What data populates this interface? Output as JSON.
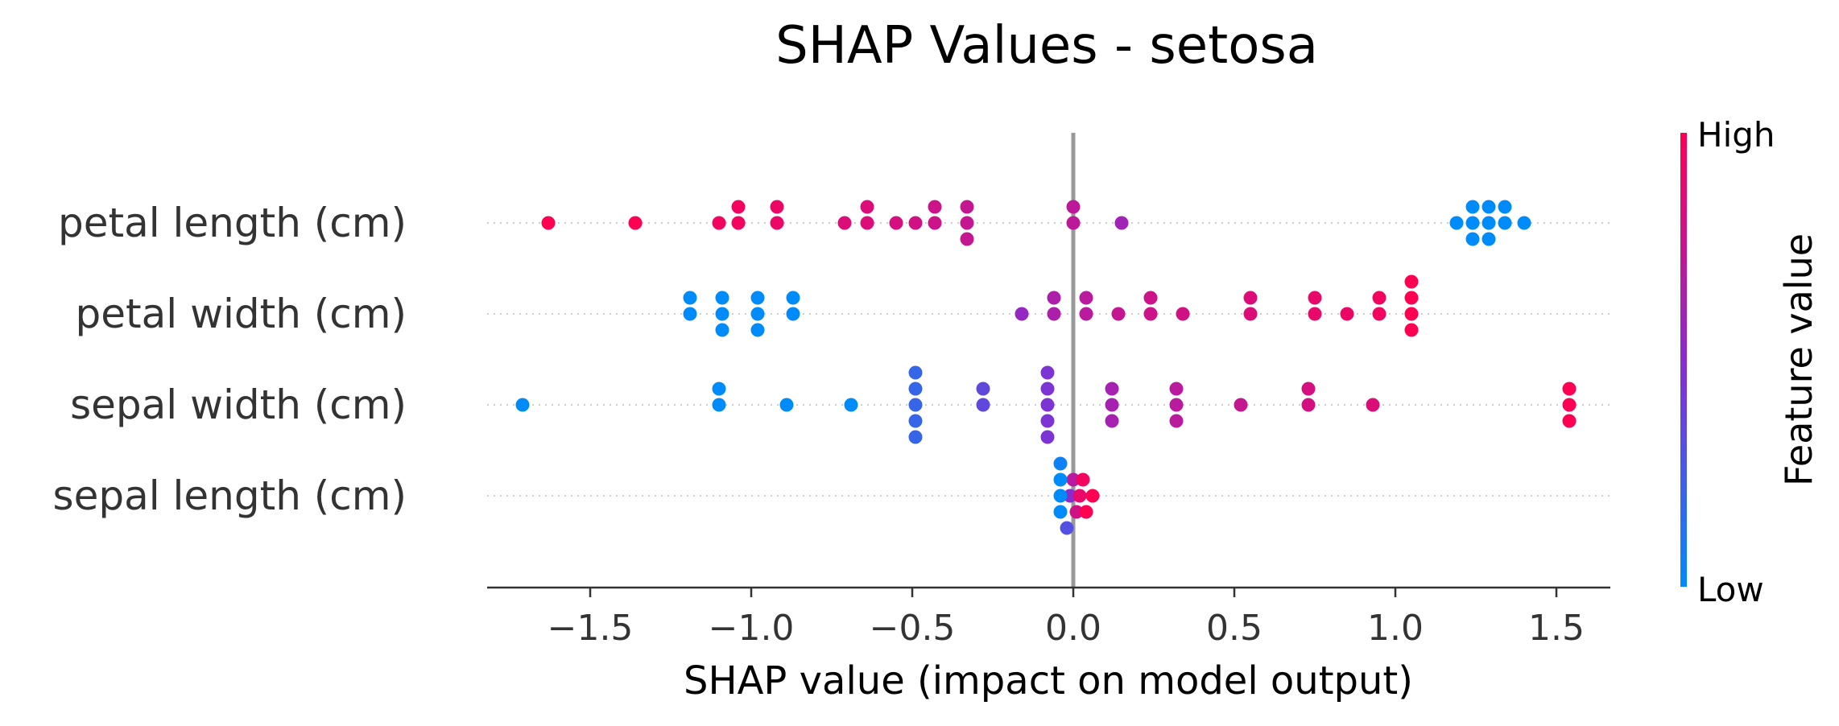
{
  "chart_data": {
    "type": "scatter",
    "subtype": "shap-beeswarm",
    "title": "SHAP Values - setosa",
    "xlabel": "SHAP value (impact on model output)",
    "xlim": [
      -1.9,
      1.7
    ],
    "xticks": [
      -1.5,
      -1.0,
      -0.5,
      0.0,
      0.5,
      1.0,
      1.5
    ],
    "xtick_labels": [
      "−1.5",
      "−1.0",
      "−0.5",
      "0.0",
      "0.5",
      "1.0",
      "1.5"
    ],
    "grid": "dotted row guides",
    "zero_line": true,
    "colorbar": {
      "label": "Feature value",
      "high_label": "High",
      "low_label": "Low",
      "low_color": "#008bfb",
      "high_color": "#ff0052"
    },
    "features": [
      {
        "name": "petal length (cm)",
        "points": [
          {
            "shap": -1.63,
            "fv": 1.0
          },
          {
            "shap": -1.36,
            "fv": 1.0
          },
          {
            "shap": -1.1,
            "fv": 0.95
          },
          {
            "shap": -1.04,
            "fv": 0.95
          },
          {
            "shap": -0.92,
            "fv": 0.92
          },
          {
            "shap": -0.71,
            "fv": 0.85
          },
          {
            "shap": -0.64,
            "fv": 0.85
          },
          {
            "shap": -0.55,
            "fv": 0.82
          },
          {
            "shap": -0.49,
            "fv": 0.8
          },
          {
            "shap": -0.43,
            "fv": 0.78
          },
          {
            "shap": -0.33,
            "fv": 0.75
          },
          {
            "shap": 0.0,
            "fv": 0.72
          },
          {
            "shap": 0.15,
            "fv": 0.6
          },
          {
            "shap": 1.19,
            "fv": 0.0
          },
          {
            "shap": 1.24,
            "fv": 0.0
          },
          {
            "shap": 1.29,
            "fv": 0.0
          },
          {
            "shap": 1.34,
            "fv": 0.0
          },
          {
            "shap": 1.4,
            "fv": 0.0
          },
          {
            "shap": 1.24,
            "fv": 0.0
          },
          {
            "shap": 1.29,
            "fv": 0.0
          },
          {
            "shap": 1.34,
            "fv": 0.0
          },
          {
            "shap": 1.24,
            "fv": 0.0
          },
          {
            "shap": 1.29,
            "fv": 0.0
          },
          {
            "shap": -1.04,
            "fv": 0.95
          },
          {
            "shap": -0.92,
            "fv": 0.92
          },
          {
            "shap": -0.64,
            "fv": 0.85
          },
          {
            "shap": -0.43,
            "fv": 0.78
          },
          {
            "shap": -0.33,
            "fv": 0.75
          },
          {
            "shap": 0.0,
            "fv": 0.72
          },
          {
            "shap": -0.33,
            "fv": 0.75
          }
        ]
      },
      {
        "name": "petal width (cm)",
        "points": [
          {
            "shap": -1.19,
            "fv": 0.0
          },
          {
            "shap": -1.19,
            "fv": 0.0
          },
          {
            "shap": -1.09,
            "fv": 0.0
          },
          {
            "shap": -1.09,
            "fv": 0.0
          },
          {
            "shap": -1.09,
            "fv": 0.0
          },
          {
            "shap": -0.98,
            "fv": 0.0
          },
          {
            "shap": -0.98,
            "fv": 0.0
          },
          {
            "shap": -0.98,
            "fv": 0.0
          },
          {
            "shap": -0.87,
            "fv": 0.0
          },
          {
            "shap": -0.87,
            "fv": 0.0
          },
          {
            "shap": -0.16,
            "fv": 0.55
          },
          {
            "shap": -0.06,
            "fv": 0.65
          },
          {
            "shap": -0.06,
            "fv": 0.65
          },
          {
            "shap": 0.04,
            "fv": 0.7
          },
          {
            "shap": 0.04,
            "fv": 0.7
          },
          {
            "shap": 0.14,
            "fv": 0.75
          },
          {
            "shap": 0.24,
            "fv": 0.78
          },
          {
            "shap": 0.24,
            "fv": 0.78
          },
          {
            "shap": 0.34,
            "fv": 0.8
          },
          {
            "shap": 0.55,
            "fv": 0.85
          },
          {
            "shap": 0.55,
            "fv": 0.85
          },
          {
            "shap": 0.75,
            "fv": 0.9
          },
          {
            "shap": 0.75,
            "fv": 0.9
          },
          {
            "shap": 0.85,
            "fv": 0.92
          },
          {
            "shap": 0.95,
            "fv": 0.95
          },
          {
            "shap": 0.95,
            "fv": 0.95
          },
          {
            "shap": 1.05,
            "fv": 1.0
          },
          {
            "shap": 1.05,
            "fv": 1.0
          },
          {
            "shap": 1.05,
            "fv": 1.0
          },
          {
            "shap": 1.05,
            "fv": 1.0
          }
        ]
      },
      {
        "name": "sepal width (cm)",
        "points": [
          {
            "shap": -1.71,
            "fv": 0.0
          },
          {
            "shap": -1.1,
            "fv": 0.0
          },
          {
            "shap": -1.1,
            "fv": 0.0
          },
          {
            "shap": -0.89,
            "fv": 0.0
          },
          {
            "shap": -0.69,
            "fv": 0.0
          },
          {
            "shap": -0.49,
            "fv": 0.2
          },
          {
            "shap": -0.49,
            "fv": 0.2
          },
          {
            "shap": -0.49,
            "fv": 0.2
          },
          {
            "shap": -0.49,
            "fv": 0.2
          },
          {
            "shap": -0.49,
            "fv": 0.2
          },
          {
            "shap": -0.28,
            "fv": 0.35
          },
          {
            "shap": -0.28,
            "fv": 0.35
          },
          {
            "shap": -0.08,
            "fv": 0.45
          },
          {
            "shap": -0.08,
            "fv": 0.45
          },
          {
            "shap": -0.08,
            "fv": 0.45
          },
          {
            "shap": -0.08,
            "fv": 0.45
          },
          {
            "shap": -0.08,
            "fv": 0.45
          },
          {
            "shap": 0.12,
            "fv": 0.62
          },
          {
            "shap": 0.12,
            "fv": 0.62
          },
          {
            "shap": 0.12,
            "fv": 0.62
          },
          {
            "shap": 0.32,
            "fv": 0.7
          },
          {
            "shap": 0.32,
            "fv": 0.7
          },
          {
            "shap": 0.32,
            "fv": 0.7
          },
          {
            "shap": 0.52,
            "fv": 0.75
          },
          {
            "shap": 0.73,
            "fv": 0.82
          },
          {
            "shap": 0.73,
            "fv": 0.82
          },
          {
            "shap": 0.93,
            "fv": 0.85
          },
          {
            "shap": 1.54,
            "fv": 1.0
          },
          {
            "shap": 1.54,
            "fv": 1.0
          },
          {
            "shap": 1.54,
            "fv": 1.0
          }
        ]
      },
      {
        "name": "sepal length (cm)",
        "points": [
          {
            "shap": -0.04,
            "fv": 0.0
          },
          {
            "shap": -0.04,
            "fv": 0.0
          },
          {
            "shap": -0.04,
            "fv": 0.0
          },
          {
            "shap": -0.04,
            "fv": 0.05
          },
          {
            "shap": -0.02,
            "fv": 0.3
          },
          {
            "shap": -0.01,
            "fv": 0.5
          },
          {
            "shap": 0.0,
            "fv": 0.7
          },
          {
            "shap": 0.01,
            "fv": 0.8
          },
          {
            "shap": 0.02,
            "fv": 0.9
          },
          {
            "shap": 0.03,
            "fv": 0.95
          },
          {
            "shap": 0.04,
            "fv": 1.0
          },
          {
            "shap": 0.06,
            "fv": 1.0
          }
        ]
      }
    ]
  }
}
